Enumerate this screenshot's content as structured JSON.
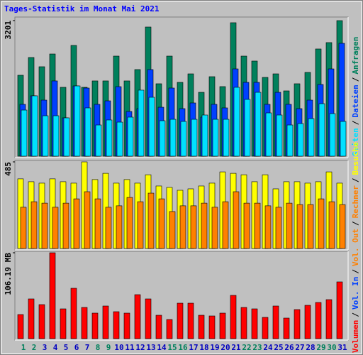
{
  "chart_data": [
    {
      "type": "bar",
      "title": "Tages-Statistik im Monat Mai 2021",
      "ylim": [
        0,
        3201
      ],
      "yticks": [
        3201
      ],
      "series": [
        {
          "name": "Anfragen",
          "color": "#00805c",
          "values": [
            1911,
            2330,
            2112,
            2413,
            1626,
            2615,
            1626,
            1777,
            1777,
            2363,
            1777,
            2045,
            3050,
            1710,
            2363,
            1743,
            1944,
            1508,
            1877,
            1643,
            3151,
            2363,
            2246,
            1860,
            1944,
            1542,
            1710,
            1978,
            2531,
            2682,
            3201
          ]
        },
        {
          "name": "Dateien",
          "color": "#0040ff",
          "values": [
            1224,
            1425,
            1324,
            1777,
            905,
            1659,
            1609,
            1224,
            1307,
            1642,
            1056,
            1123,
            2045,
            1156,
            1609,
            1123,
            1257,
            922,
            1224,
            1140,
            2061,
            1743,
            1743,
            1224,
            1508,
            1224,
            1123,
            1324,
            1693,
            2061,
            2665
          ]
        },
        {
          "name": "Seiten",
          "color": "#00e0ff",
          "values": [
            1089,
            1425,
            955,
            955,
            905,
            1659,
            1140,
            737,
            855,
            804,
            922,
            1559,
            1391,
            838,
            871,
            821,
            871,
            972,
            871,
            871,
            1626,
            1341,
            1508,
            1022,
            972,
            737,
            771,
            888,
            1240,
            1006,
            821
          ]
        }
      ]
    },
    {
      "type": "bar",
      "ylim": [
        0,
        485
      ],
      "yticks": [
        485
      ],
      "series": [
        {
          "name": "Besuche",
          "color": "#ffff00",
          "values": [
            390,
            374,
            366,
            390,
            374,
            366,
            485,
            386,
            421,
            366,
            386,
            366,
            413,
            350,
            342,
            326,
            334,
            350,
            366,
            429,
            421,
            413,
            374,
            413,
            334,
            374,
            374,
            366,
            374,
            429,
            366
          ]
        },
        {
          "name": "Rechner",
          "color": "#ff8000",
          "values": [
            231,
            262,
            254,
            231,
            254,
            278,
            318,
            278,
            231,
            239,
            286,
            262,
            310,
            278,
            207,
            239,
            239,
            254,
            231,
            262,
            318,
            254,
            254,
            239,
            231,
            254,
            246,
            246,
            278,
            262,
            246
          ]
        }
      ]
    },
    {
      "type": "bar",
      "ylim": [
        0,
        106.19
      ],
      "yticks": [
        {
          "value": 106.19,
          "label": "106.19 MB"
        }
      ],
      "series": [
        {
          "name": "Volumen",
          "color": "#ff0000",
          "values": [
            29.84,
            49.15,
            42.12,
            106.19,
            36.86,
            62.31,
            38.61,
            31.59,
            40.37,
            33.35,
            31.59,
            54.41,
            49.15,
            28.96,
            23.7,
            43.88,
            43.88,
            28.96,
            28.08,
            31.59,
            53.53,
            38.61,
            36.86,
            26.33,
            40.37,
            25.45,
            35.98,
            41.25,
            44.76,
            48.27,
            70.21
          ]
        }
      ],
      "legend_extra": [
        {
          "name": "Vol. In",
          "color": "#0040ff"
        },
        {
          "name": "Vol. Out",
          "color": "#ff8000"
        }
      ],
      "separator": "/",
      "categories": [
        "1",
        "2",
        "3",
        "4",
        "5",
        "6",
        "7",
        "8",
        "9",
        "10",
        "11",
        "12",
        "13",
        "14",
        "15",
        "16",
        "17",
        "18",
        "19",
        "20",
        "21",
        "22",
        "23",
        "24",
        "25",
        "26",
        "27",
        "28",
        "29",
        "30",
        "31"
      ],
      "category_colors": [
        "#00805c",
        "#00805c",
        "#0000c0",
        "#0000c0",
        "#0000c0",
        "#0000c0",
        "#0000c0",
        "#00805c",
        "#00805c",
        "#0000c0",
        "#0000c0",
        "#0000c0",
        "#0000c0",
        "#0000c0",
        "#00805c",
        "#00805c",
        "#0000c0",
        "#0000c0",
        "#0000c0",
        "#0000c0",
        "#0000c0",
        "#00805c",
        "#00805c",
        "#0000c0",
        "#0000c0",
        "#0000c0",
        "#0000c0",
        "#0000c0",
        "#00805c",
        "#00805c",
        "#0000c0"
      ]
    }
  ]
}
